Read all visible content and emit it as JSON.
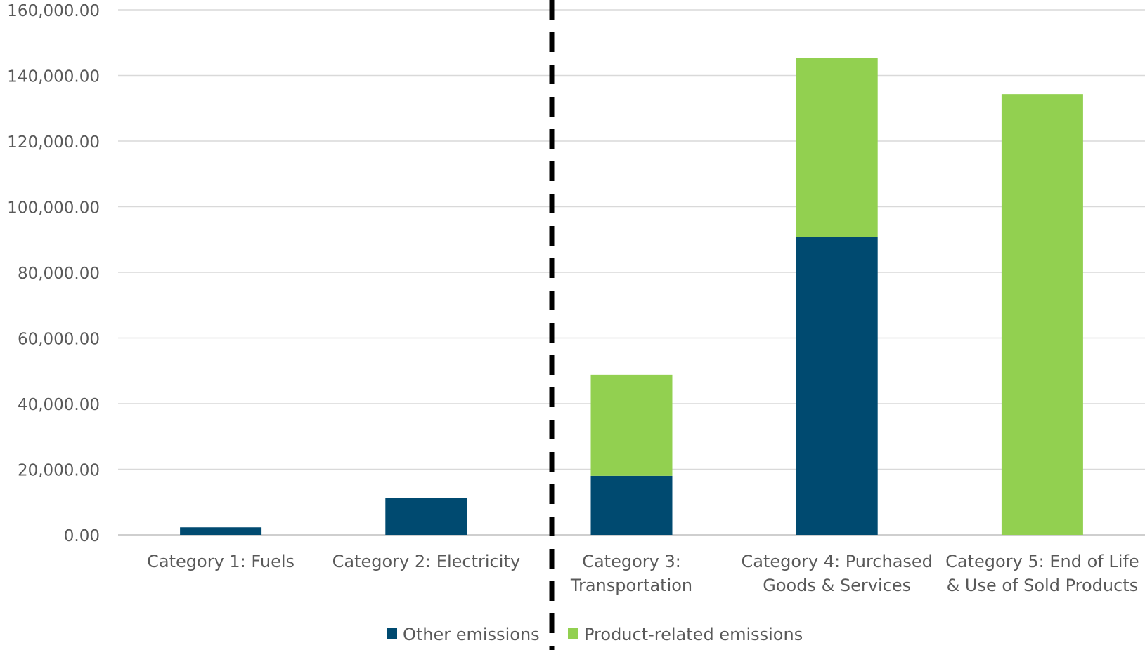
{
  "chart_data": {
    "type": "bar",
    "stacked": true,
    "categories": [
      [
        "Category 1: Fuels"
      ],
      [
        "Category 2: Electricity"
      ],
      [
        "Category 3:",
        "Transportation"
      ],
      [
        "Category 4: Purchased",
        "Goods & Services"
      ],
      [
        "Category 5: End of Life",
        "& Use of Sold Products"
      ]
    ],
    "series": [
      {
        "name": "Other emissions",
        "color": "#004a70",
        "values": [
          2300,
          11200,
          18000,
          90700,
          0
        ]
      },
      {
        "name": "Product-related emissions",
        "color": "#92d050",
        "values": [
          0,
          0,
          30800,
          54600,
          134300
        ]
      }
    ],
    "ylim": [
      0,
      160000
    ],
    "yticks": [
      "0.00",
      "20,000.00",
      "40,000.00",
      "60,000.00",
      "80,000.00",
      "100,000.00",
      "120,000.00",
      "140,000.00",
      "160,000.00"
    ],
    "grid": true,
    "divider": "dashed vertical line between Category 2 and Category 3",
    "legend_position": "bottom",
    "title": "",
    "xlabel": "",
    "ylabel": ""
  }
}
